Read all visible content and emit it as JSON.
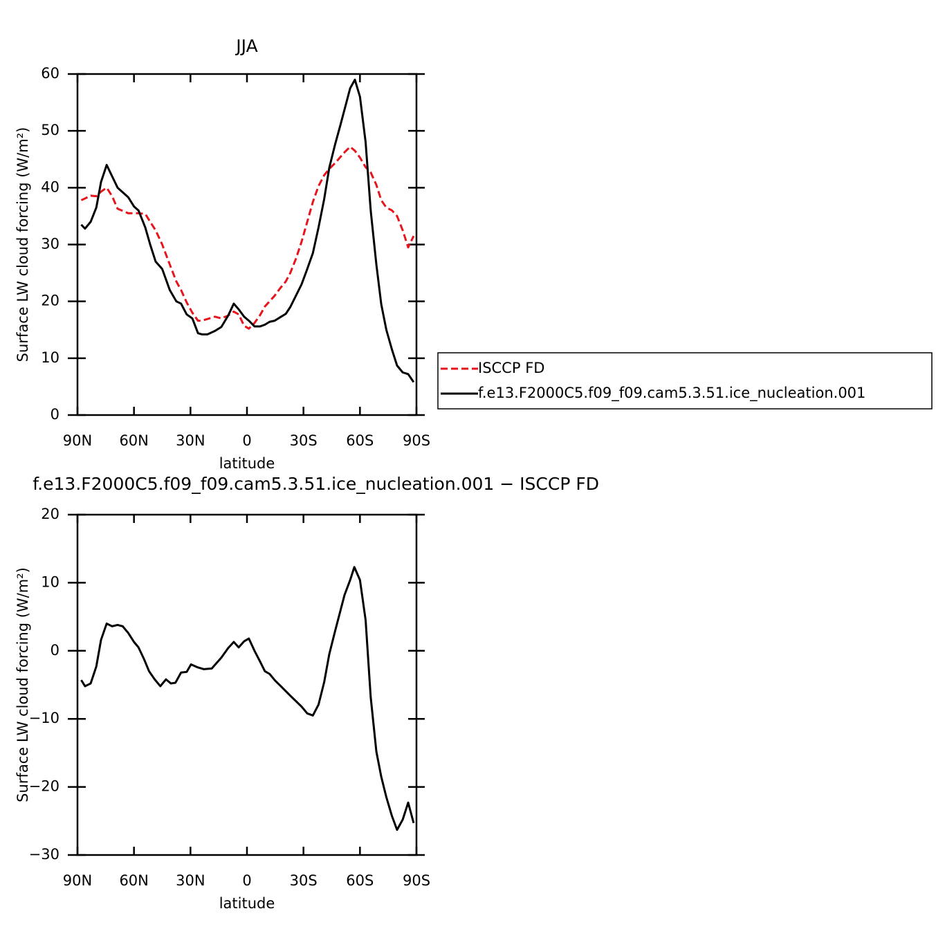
{
  "chart_data": [
    {
      "type": "line",
      "title": "JJA",
      "xlabel": "latitude",
      "ylabel": "Surface LW cloud forcing (W/m²)",
      "xlim": [
        90,
        -90
      ],
      "xticks": [
        {
          "value": 90,
          "label": "90N"
        },
        {
          "value": 60,
          "label": "60N"
        },
        {
          "value": 30,
          "label": "30N"
        },
        0,
        {
          "value": -30,
          "label": "30S"
        },
        {
          "value": -60,
          "label": "60S"
        },
        {
          "value": -90,
          "label": "90S"
        }
      ],
      "ylim": [
        0,
        60
      ],
      "yticks": [
        0,
        10,
        20,
        30,
        40,
        50,
        60
      ],
      "legend": "right",
      "x": [
        88,
        86,
        83,
        80,
        77.5,
        74.5,
        71.6,
        68.7,
        63,
        60,
        57.6,
        54,
        51.4,
        48.5,
        45,
        41,
        37.5,
        35,
        32,
        29,
        26,
        24,
        21,
        17,
        13.6,
        10,
        7,
        4.4,
        1.5,
        -1,
        -4,
        -7,
        -9.5,
        -12,
        -14.7,
        -17.6,
        -20.6,
        -23,
        -26,
        -29,
        -32,
        -35,
        -38,
        -41,
        -43.7,
        -46.7,
        -49.6,
        -52,
        -54.8,
        -57.3,
        -60,
        -63,
        -65.7,
        -68.7,
        -71.3,
        -74,
        -77,
        -79.7,
        -82.7,
        -85.6,
        -88.5
      ],
      "series": [
        {
          "name": "ISCCP FD",
          "color": "#e8141c",
          "dashed": true,
          "values": [
            37.8,
            38.1,
            38.6,
            38.5,
            39.3,
            40,
            38.5,
            36.3,
            35.5,
            35.5,
            35.5,
            35.4,
            34,
            32.5,
            30,
            26.5,
            23.5,
            22,
            19.8,
            18,
            16.6,
            16.6,
            16.9,
            17.3,
            17,
            17.5,
            18.2,
            17.7,
            15.7,
            15.2,
            16.2,
            17.6,
            19.1,
            20,
            21,
            22.3,
            23.5,
            25,
            27.5,
            30.5,
            34,
            37.5,
            40.3,
            42.2,
            43.3,
            44.3,
            45.4,
            46.3,
            47.2,
            46.5,
            45.3,
            43.6,
            42.7,
            40.5,
            37.8,
            36.5,
            36,
            35,
            32.5,
            29.5,
            31.5
          ]
        },
        {
          "name": "f.e13.F2000C5.f09_f09.cam5.3.51.ice_nucleation.001",
          "color": "#000000",
          "dashed": false,
          "values": [
            33.5,
            32.8,
            34,
            36.5,
            41,
            44,
            42,
            40,
            38.3,
            36.7,
            36,
            33,
            30,
            27,
            25.7,
            22,
            20,
            19.6,
            17.7,
            17,
            14.4,
            14.2,
            14.2,
            14.8,
            15.5,
            17.5,
            19.6,
            18.6,
            17.3,
            16.6,
            15.6,
            15.6,
            15.9,
            16.4,
            16.6,
            17.2,
            17.8,
            19,
            21,
            23,
            25.7,
            28.5,
            33,
            38,
            43.5,
            47.5,
            51,
            54,
            57.5,
            59,
            56,
            48,
            36,
            26.5,
            19.5,
            15,
            11.5,
            8.7,
            7.5,
            7.2,
            5.8
          ]
        }
      ]
    },
    {
      "type": "line",
      "title": "f.e13.F2000C5.f09_f09.cam5.3.51.ice_nucleation.001 − ISCCP FD",
      "xlabel": "latitude",
      "ylabel": "Surface LW cloud forcing (W/m²)",
      "xlim": [
        90,
        -90
      ],
      "xticks": [
        {
          "value": 90,
          "label": "90N"
        },
        {
          "value": 60,
          "label": "60N"
        },
        {
          "value": 30,
          "label": "30N"
        },
        0,
        {
          "value": -30,
          "label": "30S"
        },
        {
          "value": -60,
          "label": "60S"
        },
        {
          "value": -90,
          "label": "90S"
        }
      ],
      "ylim": [
        -30,
        20
      ],
      "yticks": [
        {
          "value": -30,
          "label": "−30"
        },
        {
          "value": -20,
          "label": "−20"
        },
        {
          "value": -10,
          "label": "−10"
        },
        0,
        10,
        20
      ],
      "x": [
        88,
        86,
        83,
        80,
        77.5,
        74.5,
        71.6,
        68.7,
        66,
        63,
        60,
        57.6,
        54.7,
        52,
        49,
        46,
        43,
        40.4,
        38,
        35,
        32,
        29.7,
        26.5,
        23,
        18.7,
        13.6,
        10,
        7,
        4.4,
        1.5,
        -1,
        -4,
        -7,
        -9.5,
        -12,
        -15,
        -17.6,
        -23,
        -29,
        -32,
        -35,
        -38,
        -41,
        -43.7,
        -46.7,
        -51.8,
        -54.8,
        -57,
        -60,
        -63,
        -65.7,
        -68.7,
        -71.3,
        -74,
        -77,
        -79.7,
        -82.7,
        -85.6,
        -88.5
      ],
      "series": [
        {
          "color": "#000000",
          "dashed": false,
          "values": [
            -4.3,
            -5.2,
            -4.8,
            -2.3,
            1.6,
            4.0,
            3.6,
            3.8,
            3.6,
            2.6,
            1.3,
            0.5,
            -1.2,
            -3.0,
            -4.2,
            -5.2,
            -4.2,
            -4.8,
            -4.7,
            -3.2,
            -3.1,
            -2.0,
            -2.4,
            -2.7,
            -2.6,
            -1.0,
            0.4,
            1.3,
            0.5,
            1.4,
            1.8,
            0,
            -1.6,
            -3.0,
            -3.4,
            -4.4,
            -5.1,
            -6.6,
            -8.2,
            -9.2,
            -9.5,
            -7.9,
            -4.6,
            -0.5,
            2.8,
            8.2,
            10.4,
            12.3,
            10.4,
            4.5,
            -6.8,
            -14.8,
            -18.5,
            -21.5,
            -24.3,
            -26.3,
            -24.8,
            -22.3,
            -25.3
          ]
        }
      ]
    }
  ]
}
